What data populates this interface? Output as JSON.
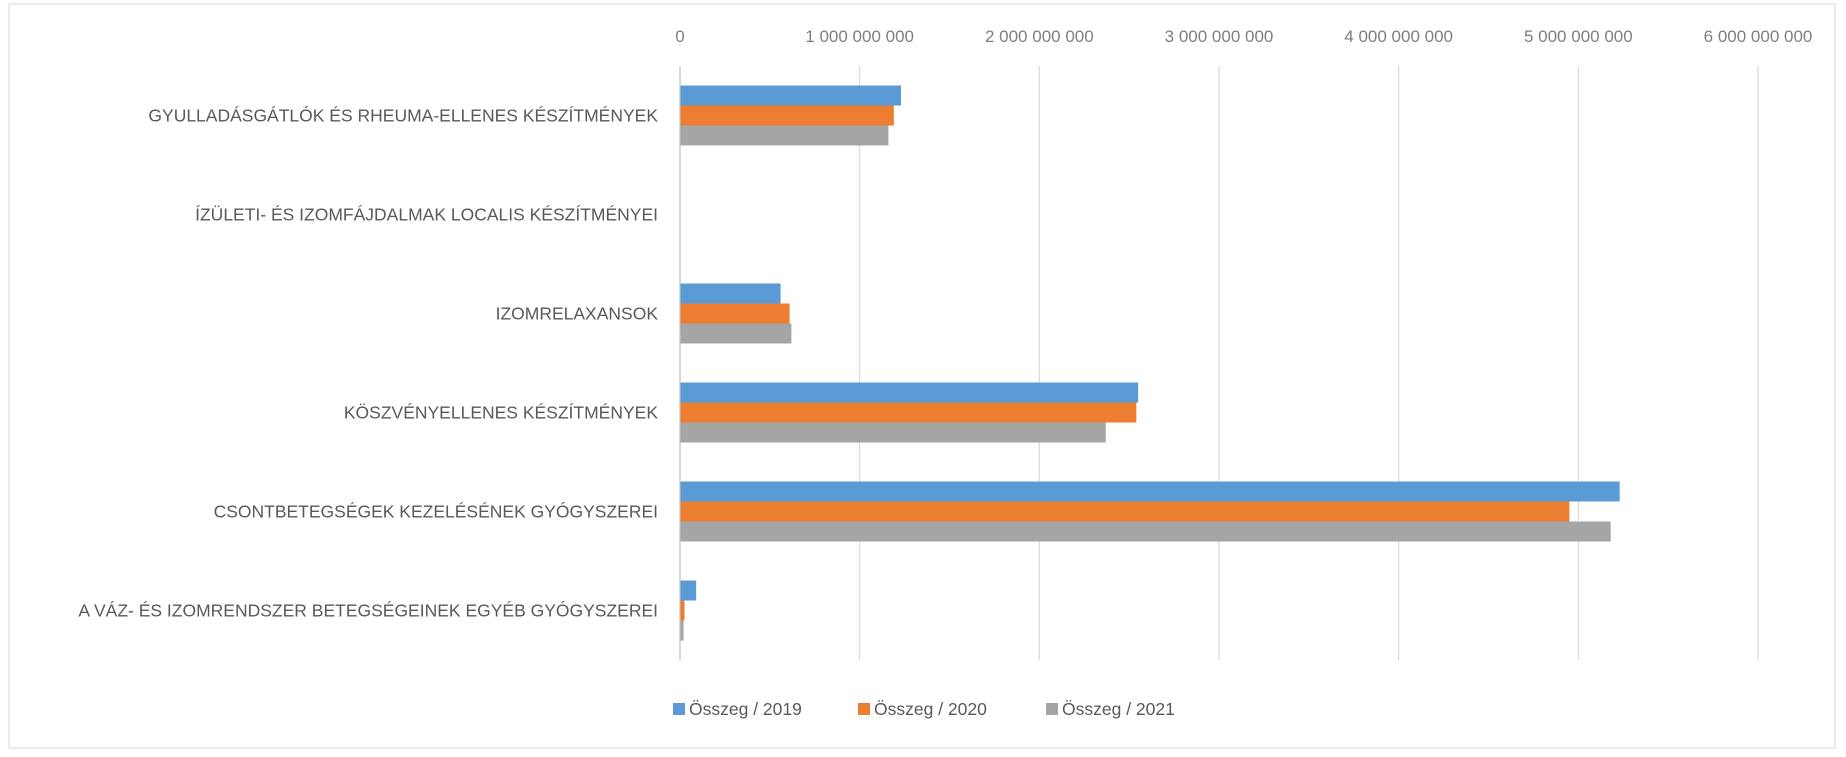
{
  "chart_data": {
    "type": "bar",
    "orientation": "horizontal",
    "title": "",
    "xlabel": "",
    "ylabel": "",
    "xlim": [
      0,
      6000000000
    ],
    "x_ticks": [
      0,
      1000000000,
      2000000000,
      3000000000,
      4000000000,
      5000000000,
      6000000000
    ],
    "x_tick_labels": [
      "0",
      "1 000 000 000",
      "2 000 000 000",
      "3 000 000 000",
      "4 000 000 000",
      "5 000 000 000",
      "6 000 000 000"
    ],
    "x_axis_position": "top",
    "grid": "vertical",
    "legend_position": "bottom",
    "categories": [
      "GYULLADÁSGÁTLÓK ÉS RHEUMA-ELLENES KÉSZÍTMÉNYEK",
      "ÍZÜLETI- ÉS IZOMFÁJDALMAK LOCALIS KÉSZÍTMÉNYEI",
      "IZOMRELAXANSOK",
      "KÖSZVÉNYELLENES KÉSZÍTMÉNYEK",
      "CSONTBETEGSÉGEK KEZELÉSÉNEK GYÓGYSZEREI",
      "A VÁZ- ÉS IZOMRENDSZER BETEGSÉGEINEK EGYÉB GYÓGYSZEREI"
    ],
    "series": [
      {
        "name": "Összeg / 2019",
        "color": "#5B9BD5",
        "values": [
          1230000000,
          0,
          560000000,
          2550000000,
          5230000000,
          90000000
        ]
      },
      {
        "name": "Összeg / 2020",
        "color": "#ED7D31",
        "values": [
          1190000000,
          0,
          610000000,
          2540000000,
          4950000000,
          25000000
        ]
      },
      {
        "name": "Összeg / 2021",
        "color": "#A5A5A5",
        "values": [
          1160000000,
          0,
          620000000,
          2370000000,
          5180000000,
          20000000
        ]
      }
    ]
  }
}
